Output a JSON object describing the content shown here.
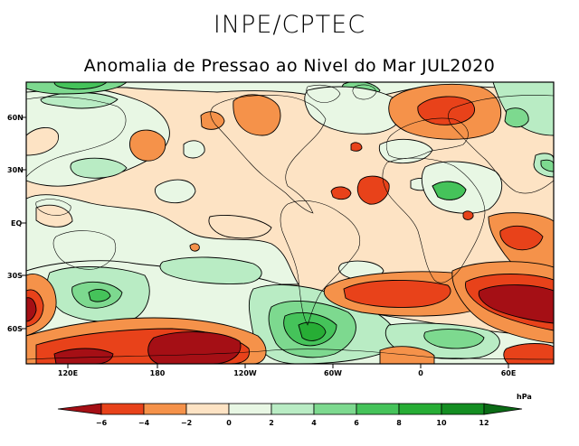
{
  "header": {
    "organization": "INPE/CPTEC",
    "title": "Anomalia de Pressao ao Nivel do Mar JUL2020"
  },
  "map": {
    "variable": "Sea level pressure anomaly",
    "lat_labels": [
      "60N",
      "30N",
      "EQ",
      "30S",
      "60S"
    ],
    "lon_labels": [
      "120E",
      "180",
      "120W",
      "60W",
      "0",
      "60E"
    ]
  },
  "colorbar": {
    "unit": "hPa",
    "tick_labels": [
      "−6",
      "−4",
      "−2",
      "0",
      "2",
      "4",
      "6",
      "8",
      "10",
      "12"
    ],
    "colors": {
      "lt_neg6": "#a50f15",
      "neg6_neg4": "#e8421a",
      "neg4_neg2": "#f5924a",
      "neg2_0": "#fde3c4",
      "0_2": "#e8f7e4",
      "2_4": "#b9ecc4",
      "4_6": "#7dd98f",
      "6_8": "#45c35a",
      "8_10": "#27ad35",
      "10_12": "#148e22",
      "gt_12": "#0b6b16"
    }
  }
}
